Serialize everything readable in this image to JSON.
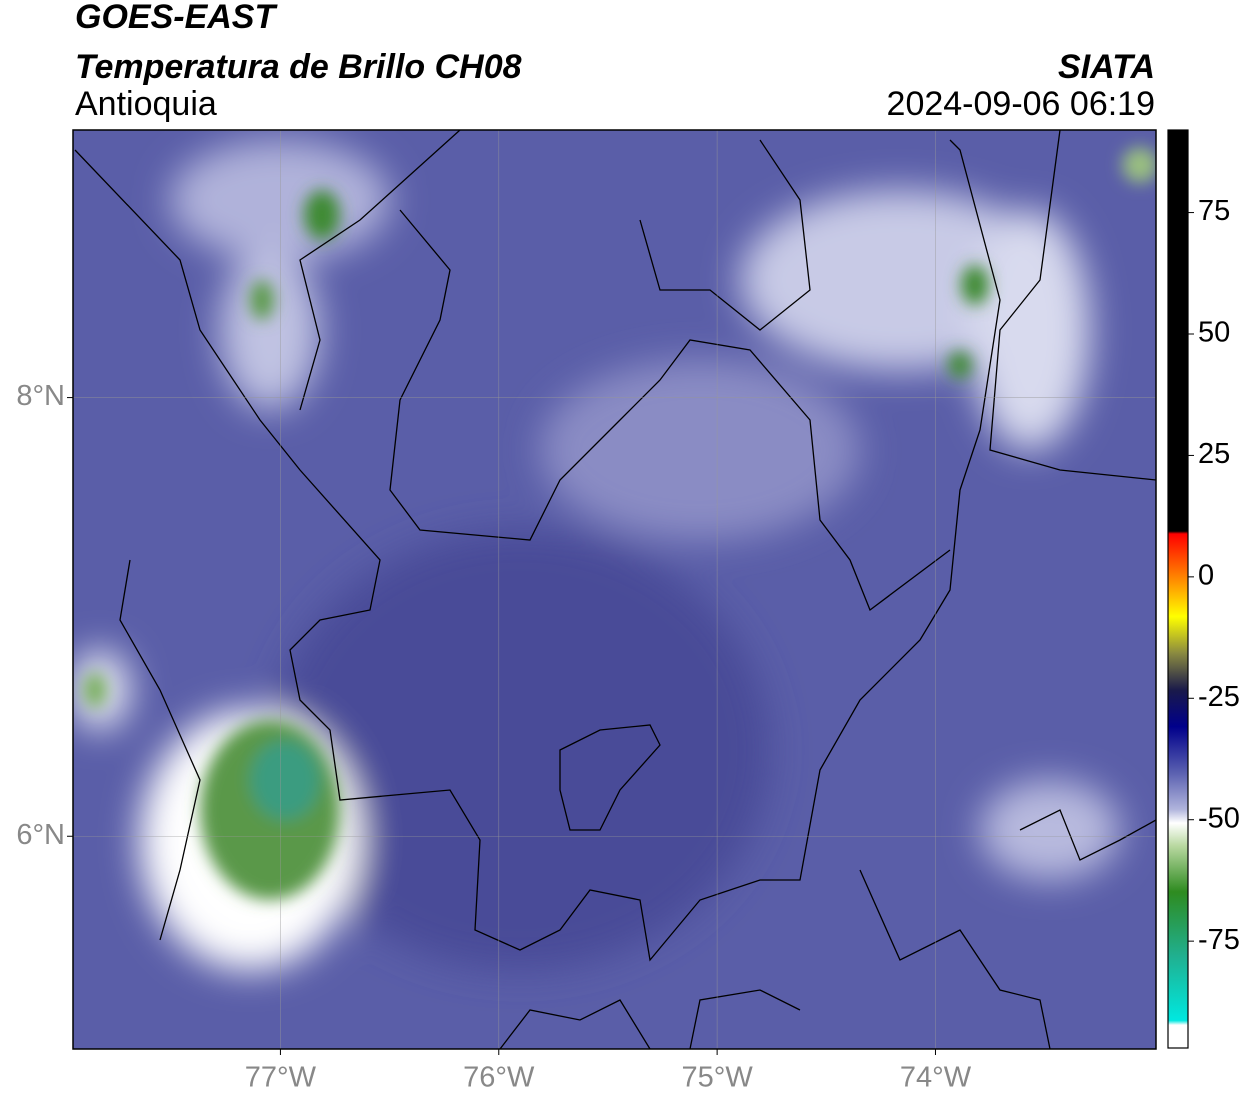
{
  "header": {
    "title": "GOES-EAST",
    "subtitle": "Temperatura de Brillo CH08",
    "region": "Antioquia",
    "source": "SIATA",
    "datetime": "2024-09-06 06:19"
  },
  "map": {
    "xlim": [
      -77.95,
      -72.99
    ],
    "ylim": [
      5.03,
      9.22
    ],
    "xticks": [
      {
        "value": -77,
        "label": "77°W"
      },
      {
        "value": -76,
        "label": "76°W"
      },
      {
        "value": -75,
        "label": "75°W"
      },
      {
        "value": -74,
        "label": "74°W"
      }
    ],
    "yticks": [
      {
        "value": 8,
        "label": "8°N"
      },
      {
        "value": 6,
        "label": "6°N"
      }
    ],
    "grid": true
  },
  "colorbar": {
    "lim": [
      -97,
      92
    ],
    "ticks": [
      75,
      50,
      25,
      0,
      -25,
      -50,
      -75
    ]
  }
}
